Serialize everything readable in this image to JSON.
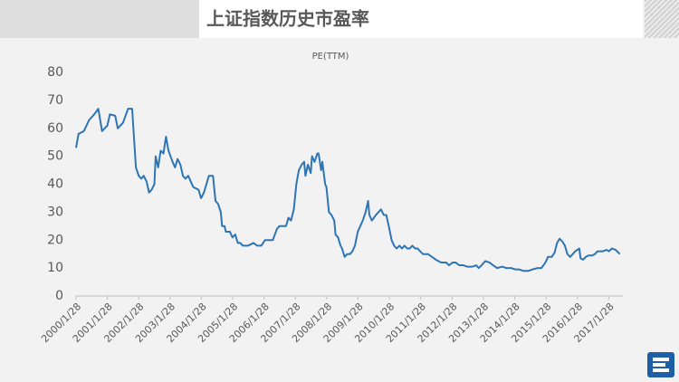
{
  "header": {
    "title": "上证指数历史市盈率"
  },
  "chart_data": {
    "type": "line",
    "title": "PE(TTM)",
    "color": "#2e75b6",
    "x": [
      2000,
      2000.08,
      2000.25,
      2000.42,
      2000.58,
      2000.71,
      2000.83,
      2001.0,
      2001.08,
      2001.25,
      2001.33,
      2001.5,
      2001.66,
      2001.79,
      2001.91,
      2002.0,
      2002.08,
      2002.16,
      2002.25,
      2002.33,
      2002.41,
      2002.5,
      2002.54,
      2002.62,
      2002.7,
      2002.79,
      2002.87,
      2002.95,
      2003.08,
      2003.16,
      2003.24,
      2003.33,
      2003.41,
      2003.49,
      2003.58,
      2003.66,
      2003.74,
      2003.91,
      2003.99,
      2004.08,
      2004.16,
      2004.24,
      2004.37,
      2004.45,
      2004.53,
      2004.62,
      2004.66,
      2004.74,
      2004.78,
      2004.91,
      2004.99,
      2005.08,
      2005.16,
      2005.24,
      2005.32,
      2005.49,
      2005.66,
      2005.78,
      2005.91,
      2006.03,
      2006.16,
      2006.28,
      2006.41,
      2006.49,
      2006.61,
      2006.7,
      2006.78,
      2006.86,
      2006.95,
      2007.03,
      2007.11,
      2007.2,
      2007.28,
      2007.32,
      2007.4,
      2007.49,
      2007.53,
      2007.61,
      2007.7,
      2007.74,
      2007.82,
      2007.86,
      2007.95,
      2007.99,
      2008.07,
      2008.15,
      2008.24,
      2008.28,
      2008.36,
      2008.44,
      2008.49,
      2008.57,
      2008.65,
      2008.74,
      2008.82,
      2008.9,
      2008.99,
      2009.07,
      2009.15,
      2009.24,
      2009.32,
      2009.36,
      2009.44,
      2009.57,
      2009.65,
      2009.73,
      2009.82,
      2009.9,
      2009.98,
      2010.07,
      2010.15,
      2010.23,
      2010.32,
      2010.4,
      2010.48,
      2010.57,
      2010.65,
      2010.73,
      2010.82,
      2010.9,
      2010.98,
      2011.07,
      2011.23,
      2011.36,
      2011.48,
      2011.65,
      2011.81,
      2011.9,
      2012.02,
      2012.11,
      2012.23,
      2012.36,
      2012.48,
      2012.65,
      2012.77,
      2012.85,
      2012.94,
      2013.06,
      2013.19,
      2013.31,
      2013.44,
      2013.6,
      2013.73,
      2013.89,
      2014.02,
      2014.14,
      2014.27,
      2014.44,
      2014.56,
      2014.73,
      2014.85,
      2014.98,
      2015.06,
      2015.18,
      2015.27,
      2015.35,
      2015.43,
      2015.52,
      2015.6,
      2015.68,
      2015.77,
      2015.85,
      2015.93,
      2016.06,
      2016.1,
      2016.18,
      2016.27,
      2016.35,
      2016.47,
      2016.56,
      2016.64,
      2016.81,
      2016.93,
      2017.01,
      2017.1,
      2017.22,
      2017.31,
      2017.35
    ],
    "values": [
      53,
      58,
      59,
      63,
      65,
      67,
      59,
      61,
      65,
      64.5,
      60,
      62,
      67,
      67,
      46,
      43,
      42,
      43,
      41,
      37,
      38,
      40,
      50,
      46,
      52,
      51,
      57,
      52,
      48,
      46,
      49,
      47,
      43,
      42,
      43,
      41,
      39,
      38,
      35,
      37,
      40,
      43,
      43,
      34,
      33,
      30,
      25,
      25,
      23,
      23,
      21,
      22,
      19,
      19,
      18,
      18,
      19,
      18,
      18,
      20,
      20,
      20,
      24,
      25,
      25,
      25,
      28,
      27,
      31,
      40,
      45,
      47,
      48,
      43,
      47,
      44,
      50,
      48,
      51,
      51,
      45,
      48,
      40,
      39,
      30,
      29,
      27,
      22,
      21,
      18,
      17,
      14,
      15,
      15,
      16,
      18,
      23,
      25,
      27,
      30,
      34,
      29,
      27,
      29,
      30,
      31,
      29,
      29,
      25,
      20,
      18,
      17,
      18,
      17,
      18,
      17,
      17,
      18,
      17,
      17,
      16,
      15,
      15,
      14,
      13,
      12,
      12,
      11,
      12,
      12,
      11,
      11,
      10.5,
      10.5,
      11,
      10,
      11,
      12.5,
      12,
      11,
      10,
      10.5,
      10,
      10,
      9.5,
      9.5,
      9,
      9,
      9.5,
      10,
      10,
      12,
      14,
      14,
      15.5,
      19,
      20.5,
      19.5,
      18,
      15,
      14,
      15,
      16,
      17,
      13.5,
      13,
      14,
      14.5,
      14.5,
      15,
      16,
      16,
      16.5,
      16,
      17,
      16.5,
      15.5,
      15
    ],
    "xlim": [
      2000,
      2017.45
    ],
    "xticks": [
      {
        "value": 2000,
        "label": "2000/1/28"
      },
      {
        "value": 2001,
        "label": "2001/1/28"
      },
      {
        "value": 2002,
        "label": "2002/1/28"
      },
      {
        "value": 2003,
        "label": "2003/1/28"
      },
      {
        "value": 2004,
        "label": "2004/1/28"
      },
      {
        "value": 2005,
        "label": "2005/1/28"
      },
      {
        "value": 2006,
        "label": "2006/1/28"
      },
      {
        "value": 2007,
        "label": "2007/1/28"
      },
      {
        "value": 2008,
        "label": "2008/1/28"
      },
      {
        "value": 2009,
        "label": "2009/1/28"
      },
      {
        "value": 2010,
        "label": "2010/1/28"
      },
      {
        "value": 2011,
        "label": "2011/1/28"
      },
      {
        "value": 2012,
        "label": "2012/1/28"
      },
      {
        "value": 2013,
        "label": "2013/1/28"
      },
      {
        "value": 2014,
        "label": "2014/1/28"
      },
      {
        "value": 2015,
        "label": "2015/1/28"
      },
      {
        "value": 2016,
        "label": "2016/1/28"
      },
      {
        "value": 2017,
        "label": "2017/1/28"
      }
    ],
    "ylim": [
      0,
      80
    ],
    "yticks": [
      0,
      10,
      20,
      30,
      40,
      50,
      60,
      70,
      80
    ],
    "grid": false
  }
}
